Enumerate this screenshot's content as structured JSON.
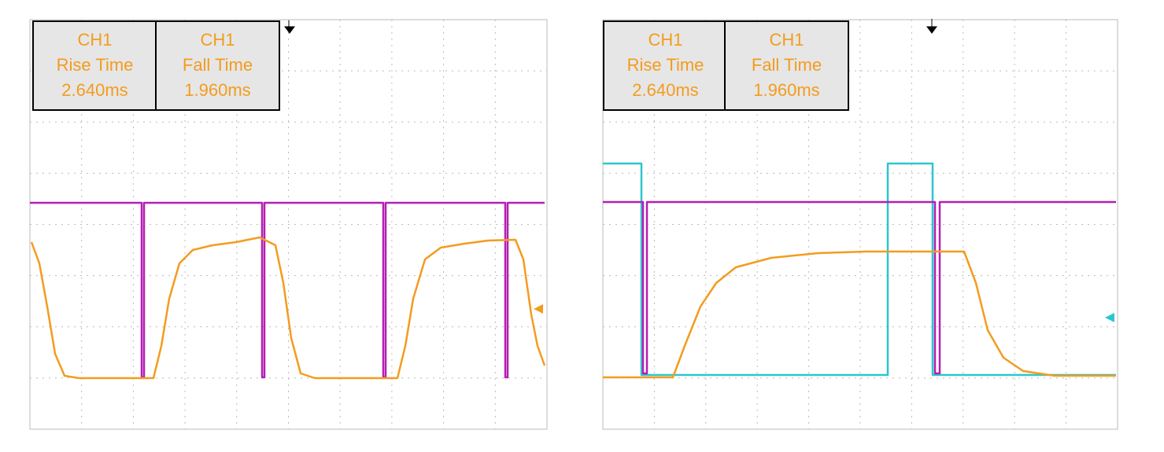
{
  "panels": [
    {
      "measurements": [
        {
          "channel": "CH1",
          "label": "Rise Time",
          "value": "2.640ms"
        },
        {
          "channel": "CH1",
          "label": "Fall Time",
          "value": "1.960ms"
        }
      ]
    },
    {
      "measurements": [
        {
          "channel": "CH1",
          "label": "Rise Time",
          "value": "2.640ms"
        },
        {
          "channel": "CH1",
          "label": "Fall Time",
          "value": "1.960ms"
        }
      ]
    }
  ]
}
